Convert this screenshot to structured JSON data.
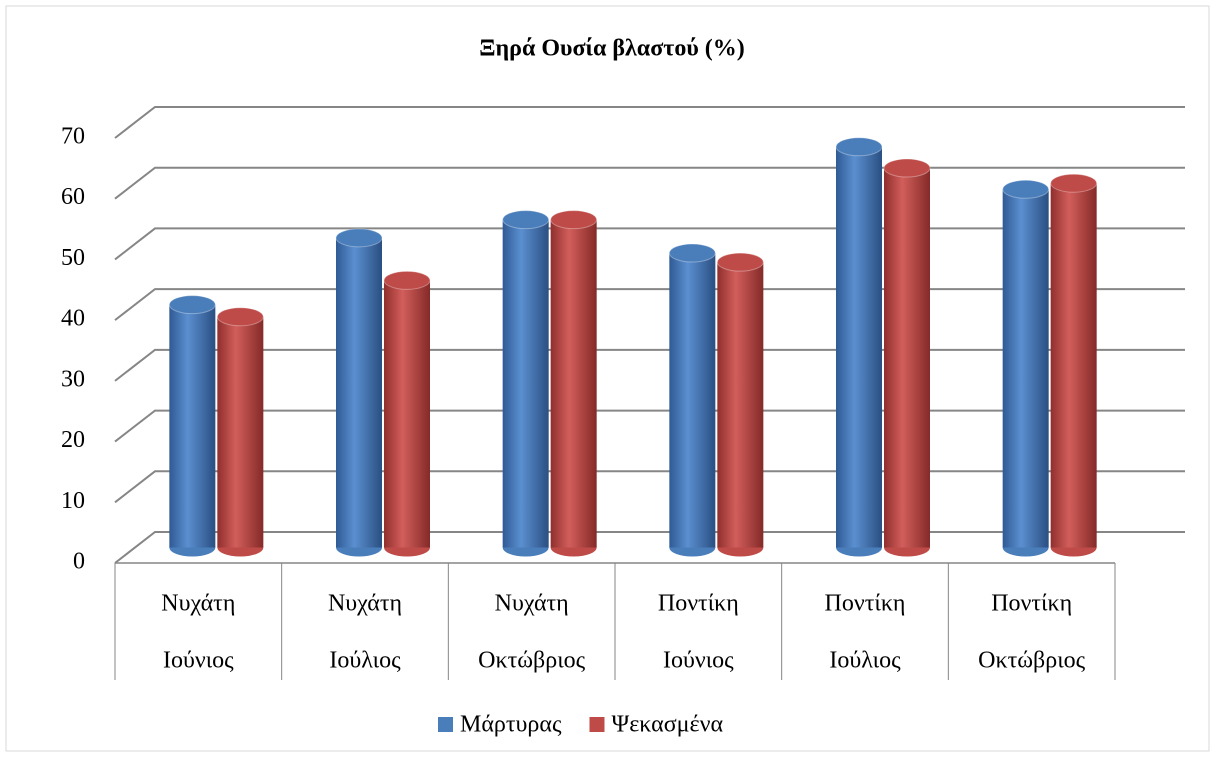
{
  "chart_data": {
    "type": "bar",
    "title": "Ξηρά Ουσία βλαστού (%)",
    "categories": [
      [
        "Νυχάτη",
        "Ιούνιος"
      ],
      [
        "Νυχάτη",
        "Ιούλιος"
      ],
      [
        "Νυχάτη",
        "Οκτώβριος"
      ],
      [
        "Ποντίκη",
        "Ιούνιος"
      ],
      [
        "Ποντίκη",
        "Ιούλιος"
      ],
      [
        "Ποντίκη",
        "Οκτώβριος"
      ]
    ],
    "series": [
      {
        "name": "Μάρτυρας",
        "color": "#4a7ebb",
        "values": [
          40,
          51,
          54,
          48.5,
          66,
          59
        ]
      },
      {
        "name": "Ψεκασμένα",
        "color": "#be4b48",
        "values": [
          38,
          44,
          54,
          47,
          62.5,
          60
        ]
      }
    ],
    "ylim": [
      0,
      70
    ],
    "yticks": [
      0,
      10,
      20,
      30,
      40,
      50,
      60,
      70
    ],
    "grid": true,
    "legend": "bottom"
  }
}
